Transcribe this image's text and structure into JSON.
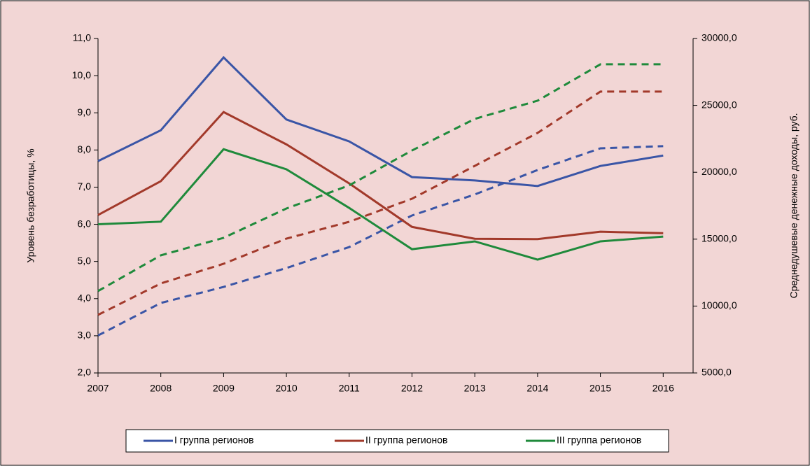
{
  "chart_data": {
    "type": "line",
    "categories": [
      "2007",
      "2008",
      "2009",
      "2010",
      "2011",
      "2012",
      "2013",
      "2014",
      "2015",
      "2016"
    ],
    "y_label": "Уровень безработицы, %",
    "y2_label": "Среднедушевые денежные доходы, руб.",
    "ylim": [
      2,
      11
    ],
    "yticks": [
      {
        "value": 2,
        "label": "2,0"
      },
      {
        "value": 3,
        "label": "3,0"
      },
      {
        "value": 4,
        "label": "4,0"
      },
      {
        "value": 5,
        "label": "5,0"
      },
      {
        "value": 6,
        "label": "6,0"
      },
      {
        "value": 7,
        "label": "7,0"
      },
      {
        "value": 8,
        "label": "8,0"
      },
      {
        "value": 9,
        "label": "9,0"
      },
      {
        "value": 10,
        "label": "10,0"
      },
      {
        "value": 11,
        "label": "11,0"
      }
    ],
    "y2lim": [
      5000,
      30000
    ],
    "y2ticks": [
      {
        "value": 5000,
        "label": "5000,0"
      },
      {
        "value": 10000,
        "label": "10000,0"
      },
      {
        "value": 15000,
        "label": "15000,0"
      },
      {
        "value": 20000,
        "label": "20000,0"
      },
      {
        "value": 25000,
        "label": "25000,0"
      },
      {
        "value": 30000,
        "label": "30000,0"
      }
    ],
    "series": [
      {
        "name": "I группа регионов",
        "color": "#3a55a6",
        "values": [
          7.7,
          8.53,
          10.49,
          8.82,
          8.23,
          7.27,
          7.18,
          7.03,
          7.57,
          7.85
        ],
        "y2_values": [
          7800,
          10230,
          11430,
          12840,
          14410,
          16770,
          18340,
          20170,
          21790,
          21950
        ]
      },
      {
        "name": "II группа регионов",
        "color": "#a2392a",
        "values": [
          6.25,
          7.16,
          9.02,
          8.15,
          7.1,
          5.93,
          5.61,
          5.6,
          5.8,
          5.76
        ],
        "y2_values": [
          9340,
          11690,
          13160,
          15040,
          16300,
          18020,
          20480,
          22940,
          26030,
          26030
        ]
      },
      {
        "name": "III группа регионов",
        "color": "#1f8a3b",
        "values": [
          6.0,
          6.07,
          8.02,
          7.48,
          6.44,
          5.33,
          5.54,
          5.05,
          5.54,
          5.67
        ],
        "y2_values": [
          11120,
          13790,
          15100,
          17290,
          19020,
          21630,
          23990,
          25350,
          28070,
          28070
        ]
      }
    ]
  }
}
